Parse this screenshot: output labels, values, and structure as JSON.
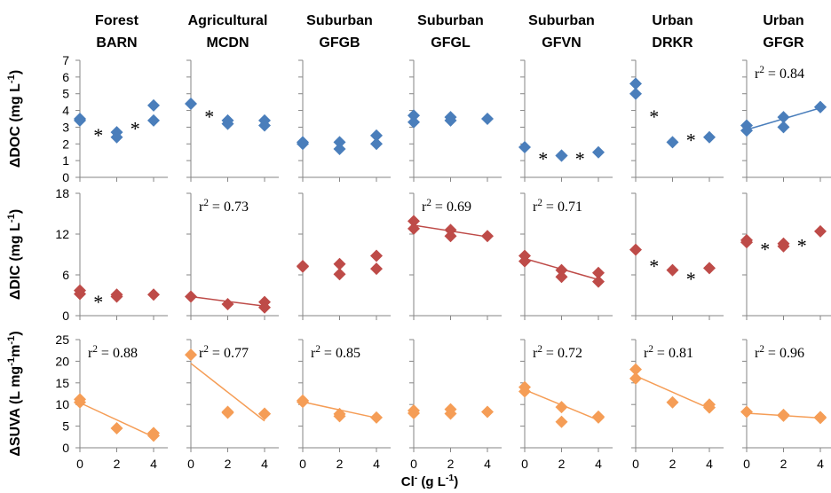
{
  "figure": {
    "xlabel": "Cl",
    "xlabel_sup": "-",
    "xlabel_unit": "(g L",
    "xlabel_unit_sup": "-1",
    "xlabel_close": ")"
  },
  "chart_data": {
    "type": "scatter",
    "x_ticks": [
      0,
      2,
      4
    ],
    "xlim": [
      0,
      4
    ],
    "sites": [
      {
        "land_use": "Forest",
        "site": "BARN"
      },
      {
        "land_use": "Agricultural",
        "site": "MCDN"
      },
      {
        "land_use": "Suburban",
        "site": "GFGB"
      },
      {
        "land_use": "Suburban",
        "site": "GFGL"
      },
      {
        "land_use": "Suburban",
        "site": "GFVN"
      },
      {
        "land_use": "Urban",
        "site": "DRKR"
      },
      {
        "land_use": "Urban",
        "site": "GFGR"
      }
    ],
    "rows": [
      {
        "name": "DOC",
        "ylabel": "ΔDOC (mg L",
        "ylabel_sup": "-1",
        "ylabel_close": ")",
        "ylim": [
          0,
          7
        ],
        "y_ticks": [
          0,
          1,
          2,
          3,
          4,
          5,
          6,
          7
        ],
        "color": "#4a7ebb",
        "panels": [
          {
            "points": [
              [
                0,
                3.4
              ],
              [
                0,
                3.5
              ],
              [
                2,
                2.7
              ],
              [
                2,
                2.4
              ],
              [
                4,
                4.3
              ],
              [
                4,
                3.4
              ]
            ],
            "stars": [
              [
                1,
                2.6
              ],
              [
                3,
                3.0
              ]
            ],
            "r2": null,
            "fit": null
          },
          {
            "points": [
              [
                0,
                4.4
              ],
              [
                2,
                3.4
              ],
              [
                2,
                3.2
              ],
              [
                4,
                3.4
              ],
              [
                4,
                3.1
              ]
            ],
            "stars": [
              [
                1,
                3.7
              ]
            ],
            "r2": null,
            "fit": null
          },
          {
            "points": [
              [
                0,
                2.0
              ],
              [
                0,
                2.1
              ],
              [
                2,
                2.1
              ],
              [
                2,
                1.7
              ],
              [
                4,
                2.5
              ],
              [
                4,
                2.0
              ]
            ],
            "stars": [],
            "r2": null,
            "fit": null
          },
          {
            "points": [
              [
                0,
                3.7
              ],
              [
                0,
                3.3
              ],
              [
                2,
                3.6
              ],
              [
                2,
                3.4
              ],
              [
                4,
                3.5
              ]
            ],
            "stars": [],
            "r2": null,
            "fit": null
          },
          {
            "points": [
              [
                0,
                1.8
              ],
              [
                2,
                1.3
              ],
              [
                2,
                1.3
              ],
              [
                4,
                1.5
              ]
            ],
            "stars": [
              [
                1,
                1.2
              ],
              [
                3,
                1.2
              ]
            ],
            "r2": null,
            "fit": null
          },
          {
            "points": [
              [
                0,
                5.6
              ],
              [
                0,
                5.0
              ],
              [
                2,
                2.1
              ],
              [
                4,
                2.4
              ]
            ],
            "stars": [
              [
                1,
                3.7
              ],
              [
                3,
                2.3
              ]
            ],
            "r2": null,
            "fit": null
          },
          {
            "points": [
              [
                0,
                3.1
              ],
              [
                0,
                2.8
              ],
              [
                2,
                3.6
              ],
              [
                2,
                3.0
              ],
              [
                4,
                4.2
              ],
              [
                4,
                4.2
              ]
            ],
            "stars": [],
            "r2": "0.84",
            "fit": [
              [
                0,
                2.85
              ],
              [
                4,
                4.15
              ]
            ]
          }
        ]
      },
      {
        "name": "DIC",
        "ylabel": "ΔDIC (mg L",
        "ylabel_sup": "-1",
        "ylabel_close": ")",
        "ylim": [
          0,
          18
        ],
        "y_ticks": [
          0,
          6,
          12,
          18
        ],
        "color": "#be4b48",
        "panels": [
          {
            "points": [
              [
                0,
                3.7
              ],
              [
                0,
                3.2
              ],
              [
                2,
                3.1
              ],
              [
                2,
                2.8
              ],
              [
                4,
                3.1
              ]
            ],
            "stars": [
              [
                1,
                2.2
              ]
            ],
            "r2": null,
            "fit": null
          },
          {
            "points": [
              [
                0,
                2.8
              ],
              [
                2,
                1.7
              ],
              [
                4,
                2.0
              ],
              [
                4,
                1.2
              ]
            ],
            "stars": [],
            "r2": "0.73",
            "fit": [
              [
                0,
                2.8
              ],
              [
                4,
                1.4
              ]
            ]
          },
          {
            "points": [
              [
                0,
                7.3
              ],
              [
                0,
                7.2
              ],
              [
                2,
                7.6
              ],
              [
                2,
                6.1
              ],
              [
                4,
                8.8
              ],
              [
                4,
                6.9
              ]
            ],
            "stars": [],
            "r2": null,
            "fit": null
          },
          {
            "points": [
              [
                0,
                13.9
              ],
              [
                0,
                12.8
              ],
              [
                2,
                12.6
              ],
              [
                2,
                11.7
              ],
              [
                4,
                11.7
              ]
            ],
            "stars": [],
            "r2": "0.69",
            "fit": [
              [
                0,
                13.3
              ],
              [
                4,
                11.6
              ]
            ]
          },
          {
            "points": [
              [
                0,
                8.8
              ],
              [
                0,
                8.0
              ],
              [
                2,
                6.7
              ],
              [
                2,
                5.7
              ],
              [
                4,
                6.3
              ],
              [
                4,
                5.0
              ]
            ],
            "stars": [],
            "r2": "0.71",
            "fit": [
              [
                0,
                8.4
              ],
              [
                4,
                5.3
              ]
            ]
          },
          {
            "points": [
              [
                0,
                9.7
              ],
              [
                2,
                6.7
              ],
              [
                4,
                7.0
              ]
            ],
            "stars": [
              [
                1,
                7.5
              ],
              [
                3,
                5.6
              ]
            ],
            "r2": null,
            "fit": null
          },
          {
            "points": [
              [
                0,
                11.1
              ],
              [
                0,
                10.8
              ],
              [
                2,
                10.6
              ],
              [
                2,
                10.2
              ],
              [
                4,
                12.4
              ]
            ],
            "stars": [
              [
                1,
                10.0
              ],
              [
                3,
                10.5
              ]
            ],
            "r2": null,
            "fit": null
          }
        ]
      },
      {
        "name": "SUVA",
        "ylabel": "ΔSUVA (L mg",
        "ylabel_sup": "-1",
        "ylabel_mid": "m",
        "ylabel_sup2": "-1",
        "ylabel_close": ")",
        "ylim": [
          0,
          25
        ],
        "y_ticks": [
          0,
          5,
          10,
          15,
          20,
          25
        ],
        "color": "#f59d56",
        "panels": [
          {
            "points": [
              [
                0,
                11.2
              ],
              [
                0,
                10.5
              ],
              [
                2,
                4.5
              ],
              [
                4,
                3.4
              ],
              [
                4,
                2.8
              ]
            ],
            "stars": [],
            "r2": "0.88",
            "fit": [
              [
                0,
                10.4
              ],
              [
                4,
                2.5
              ]
            ]
          },
          {
            "points": [
              [
                0,
                21.5
              ],
              [
                2,
                8.3
              ],
              [
                2,
                8.1
              ],
              [
                4,
                7.9
              ],
              [
                4,
                7.8
              ]
            ],
            "stars": [],
            "r2": "0.77",
            "fit": [
              [
                0,
                19.5
              ],
              [
                4,
                6.2
              ]
            ]
          },
          {
            "points": [
              [
                0,
                10.9
              ],
              [
                0,
                10.6
              ],
              [
                2,
                7.8
              ],
              [
                2,
                7.3
              ],
              [
                4,
                7.0
              ]
            ],
            "stars": [],
            "r2": "0.85",
            "fit": [
              [
                0,
                10.6
              ],
              [
                4,
                6.9
              ]
            ]
          },
          {
            "points": [
              [
                0,
                8.6
              ],
              [
                0,
                8.0
              ],
              [
                2,
                8.9
              ],
              [
                2,
                7.9
              ],
              [
                4,
                8.3
              ]
            ],
            "stars": [],
            "r2": null,
            "fit": null
          },
          {
            "points": [
              [
                0,
                14.0
              ],
              [
                0,
                13.0
              ],
              [
                2,
                9.4
              ],
              [
                2,
                6.0
              ],
              [
                4,
                7.2
              ],
              [
                4,
                7.0
              ]
            ],
            "stars": [],
            "r2": "0.72",
            "fit": [
              [
                0,
                13.4
              ],
              [
                4,
                6.4
              ]
            ]
          },
          {
            "points": [
              [
                0,
                18.1
              ],
              [
                0,
                16.0
              ],
              [
                2,
                10.5
              ],
              [
                4,
                10.0
              ],
              [
                4,
                9.3
              ]
            ],
            "stars": [],
            "r2": "0.81",
            "fit": [
              [
                0,
                16.6
              ],
              [
                4,
                9.1
              ]
            ]
          },
          {
            "points": [
              [
                0,
                8.3
              ],
              [
                2,
                7.6
              ],
              [
                2,
                7.4
              ],
              [
                4,
                7.1
              ],
              [
                4,
                6.9
              ]
            ],
            "stars": [],
            "r2": "0.96",
            "fit": [
              [
                0,
                8.0
              ],
              [
                4,
                6.9
              ]
            ]
          }
        ]
      }
    ]
  }
}
